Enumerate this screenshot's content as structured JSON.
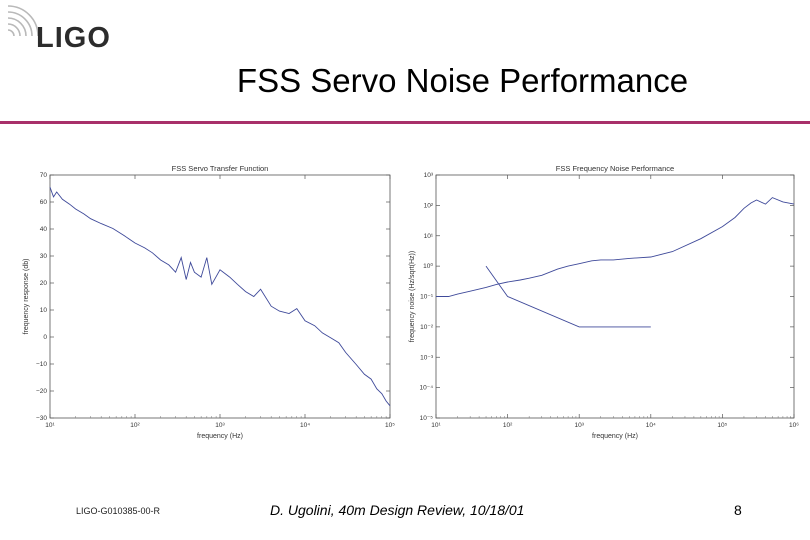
{
  "logo": {
    "text": "LIGO"
  },
  "slide": {
    "title": "FSS Servo Noise Performance"
  },
  "footer": {
    "doc_id": "LIGO-G010385-00-R",
    "author": "D. Ugolini, 40m Design Review, 10/18/01",
    "page": "8"
  },
  "colors": {
    "accent_rule": "#a8306a",
    "trace": "#3f4a9a"
  },
  "chart_data": [
    {
      "type": "line",
      "title": "FSS Servo Transfer Function",
      "xlabel": "frequency (Hz)",
      "ylabel": "frequency response (db)",
      "xscale": "log",
      "xlim": [
        10,
        100000
      ],
      "ylim": [
        -30,
        70
      ],
      "xticks": [
        "10¹",
        "10²",
        "10³",
        "10⁴",
        "10⁵"
      ],
      "yticks": [
        "70",
        "60",
        "40",
        "30",
        "20",
        "10",
        "0",
        "−10",
        "−20",
        "−30"
      ],
      "grid": false,
      "series": [
        {
          "x": [
            10,
            11,
            12,
            14,
            17,
            20,
            25,
            30,
            40,
            55,
            75,
            100,
            130,
            160,
            200,
            250,
            300,
            350,
            400,
            450,
            500,
            600,
            700,
            800,
            1000,
            1300,
            1600,
            2000,
            2500,
            3000,
            4000,
            5000,
            6500,
            8000,
            10000,
            13000,
            16000,
            20000,
            25000,
            30000,
            40000,
            50000,
            60000,
            70000,
            80000,
            90000,
            100000
          ],
          "y": [
            65,
            61,
            63,
            60,
            58,
            56,
            54,
            52,
            50,
            48,
            45,
            42,
            40,
            38,
            35,
            33,
            30,
            36,
            27,
            34,
            30,
            28,
            36,
            25,
            31,
            28,
            25,
            22,
            20,
            23,
            16,
            14,
            13,
            15,
            10,
            8,
            5,
            3,
            1,
            -3,
            -8,
            -12,
            -14,
            -18,
            -20,
            -23,
            -25
          ]
        }
      ]
    },
    {
      "type": "line",
      "title": "FSS Frequency Noise Performance",
      "xlabel": "frequency (Hz)",
      "ylabel": "frequency noise (Hz/sqrt(Hz))",
      "xscale": "log",
      "yscale": "log",
      "xlim": [
        10,
        1000000
      ],
      "ylim": [
        1e-05,
        1000
      ],
      "xticks": [
        "10¹",
        "10²",
        "10³",
        "10⁴",
        "10⁵",
        "10⁶"
      ],
      "yticks": [
        "10³",
        "10²",
        "10¹",
        "10⁰",
        "10⁻¹",
        "10⁻²",
        "10⁻³",
        "10⁻⁴",
        "10⁻⁵"
      ],
      "grid": false,
      "series": [
        {
          "x": [
            10,
            15,
            20,
            30,
            50,
            70,
            100,
            150,
            200,
            300,
            500,
            700,
            1000,
            1500,
            2000,
            3000,
            5000,
            10000,
            20000,
            50000,
            100000,
            150000,
            200000,
            250000,
            300000,
            400000,
            500000,
            700000,
            1000000
          ],
          "y": [
            0.1,
            0.1,
            0.12,
            0.15,
            0.2,
            0.25,
            0.3,
            0.35,
            0.4,
            0.5,
            0.8,
            1,
            1.2,
            1.5,
            1.6,
            1.6,
            1.8,
            2,
            3,
            8,
            20,
            40,
            80,
            120,
            150,
            110,
            180,
            130,
            110
          ]
        },
        {
          "x": [
            50,
            100,
            1000,
            10000
          ],
          "y": [
            1,
            0.1,
            0.01,
            0.01
          ]
        }
      ]
    }
  ]
}
